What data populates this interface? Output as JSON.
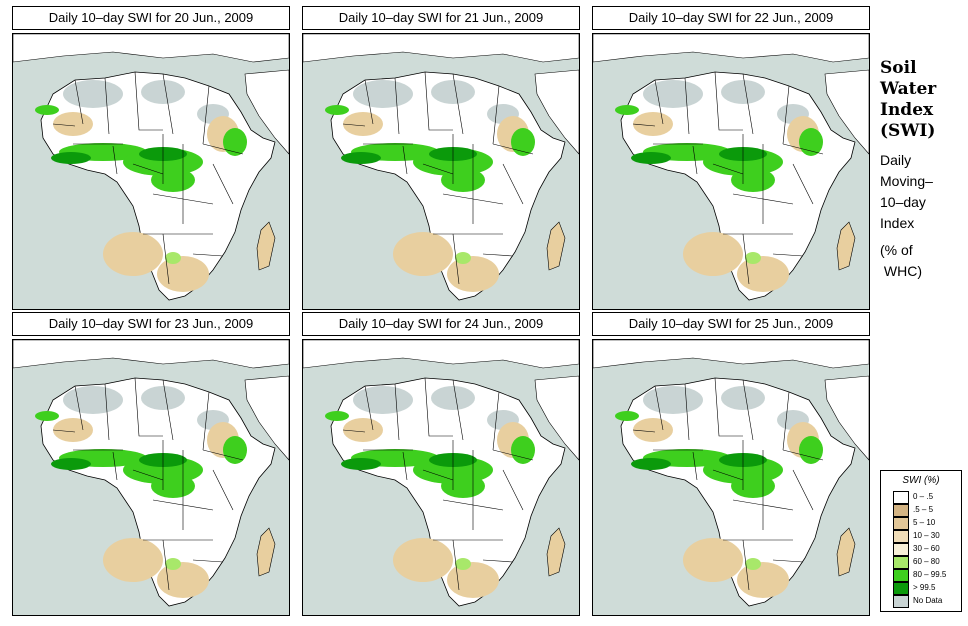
{
  "panels": [
    {
      "title": "Daily 10–day SWI for  20 Jun., 2009",
      "variant": 0
    },
    {
      "title": "Daily 10–day SWI for  21 Jun., 2009",
      "variant": 1
    },
    {
      "title": "Daily 10–day SWI for  22 Jun., 2009",
      "variant": 2
    },
    {
      "title": "Daily 10–day SWI for  23 Jun., 2009",
      "variant": 3
    },
    {
      "title": "Daily 10–day SWI for  24 Jun., 2009",
      "variant": 4
    },
    {
      "title": "Daily 10–day SWI for  25 Jun., 2009",
      "variant": 5
    }
  ],
  "side": {
    "title_lines": [
      "Soil",
      "Water",
      "Index",
      "(SWI)"
    ],
    "subtitle_lines": [
      "Daily",
      "Moving–",
      "10–day",
      "Index"
    ],
    "unit_lines": [
      "(% of",
      " WHC)"
    ]
  },
  "legend": {
    "title": "SWI (%)",
    "items": [
      {
        "label": "0 – .5",
        "color": "#ffffff"
      },
      {
        "label": ".5 – 5",
        "color": "#d4b483"
      },
      {
        "label": "5 – 10",
        "color": "#e2c798"
      },
      {
        "label": "10 – 30",
        "color": "#f0ddb8"
      },
      {
        "label": "30 – 60",
        "color": "#f8f0d8"
      },
      {
        "label": "60 – 80",
        "color": "#a8e86a"
      },
      {
        "label": "80 – 99.5",
        "color": "#3ecf1e"
      },
      {
        "label": "> 99.5",
        "color": "#0b9a0b"
      },
      {
        "label": "No Data",
        "color": "#c9d4d4"
      }
    ]
  },
  "colors": {
    "ocean": "#cfdcd8",
    "land": "#ffffff",
    "dry": "#e8cf9f",
    "nodata": "#c9d4d4",
    "wet": "#3ecf1e",
    "saturated": "#0b9a0b",
    "moist": "#a8e86a"
  }
}
